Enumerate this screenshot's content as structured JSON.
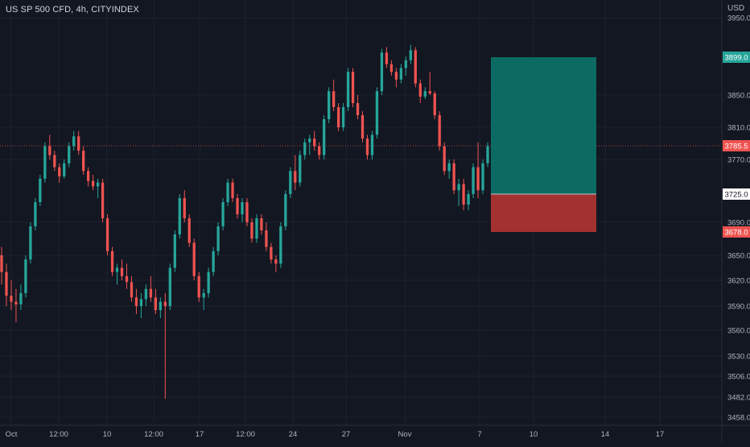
{
  "header": {
    "symbol_title": "US SP 500 CFD, 4h, CITYINDEX"
  },
  "price_axis": {
    "currency": "USD"
  },
  "colors": {
    "background": "#131722",
    "up": "#26a69a",
    "down": "#ef5350",
    "profit_zone": "#0b6b63",
    "loss_zone": "#a3312f",
    "grid": "#1e222d",
    "axis_text": "#b2b5be"
  },
  "badges": {
    "target": {
      "value": 3899.0,
      "label": "3899.0",
      "color": "#26a69a"
    },
    "current": {
      "value": 3785.5,
      "label": "3785.5",
      "color": "#ef5350"
    },
    "entry": {
      "value": 3725.0,
      "label": "3725.0",
      "color": "#ffffff"
    },
    "stop": {
      "value": 3678.0,
      "label": "3678.0",
      "color": "#ef5350"
    }
  },
  "chart_data": {
    "type": "candlestick",
    "instrument": "US SP 500 CFD",
    "timeframe": "4h",
    "source": "CITYINDEX",
    "y_ticks": [
      {
        "value": 3950,
        "label": "3950.0"
      },
      {
        "value": 3850,
        "label": "3850.0"
      },
      {
        "value": 3810,
        "label": "3810.0"
      },
      {
        "value": 3770,
        "label": "3770.0"
      },
      {
        "value": 3690,
        "label": "3690.0"
      },
      {
        "value": 3650,
        "label": "3650.0"
      },
      {
        "value": 3620,
        "label": "3620.0"
      },
      {
        "value": 3590,
        "label": "3590.0"
      },
      {
        "value": 3560,
        "label": "3560.0"
      },
      {
        "value": 3530,
        "label": "3530.0"
      },
      {
        "value": 3506,
        "label": "3506.0"
      },
      {
        "value": 3482,
        "label": "3482.0"
      },
      {
        "value": 3458,
        "label": "3458.0"
      }
    ],
    "x_ticks": [
      "Oct",
      "12:00",
      "10",
      "12:00",
      "17",
      "12:00",
      "24",
      "27",
      "Nov",
      "7",
      "10",
      "14",
      "17"
    ],
    "position": {
      "side": "long",
      "entry": 3725.0,
      "target": 3899.0,
      "stop": 3678.0
    },
    "candles": [
      [
        3650,
        3660,
        3615,
        3630
      ],
      [
        3630,
        3640,
        3590,
        3602
      ],
      [
        3602,
        3620,
        3585,
        3595
      ],
      [
        3595,
        3610,
        3570,
        3592
      ],
      [
        3592,
        3615,
        3585,
        3605
      ],
      [
        3605,
        3650,
        3600,
        3645
      ],
      [
        3645,
        3690,
        3640,
        3685
      ],
      [
        3685,
        3720,
        3680,
        3715
      ],
      [
        3715,
        3750,
        3710,
        3745
      ],
      [
        3745,
        3790,
        3740,
        3785
      ],
      [
        3785,
        3800,
        3770,
        3775
      ],
      [
        3775,
        3780,
        3755,
        3760
      ],
      [
        3760,
        3765,
        3740,
        3748
      ],
      [
        3748,
        3770,
        3745,
        3765
      ],
      [
        3765,
        3790,
        3760,
        3785
      ],
      [
        3785,
        3805,
        3780,
        3798
      ],
      [
        3798,
        3805,
        3775,
        3780
      ],
      [
        3780,
        3785,
        3750,
        3755
      ],
      [
        3755,
        3760,
        3735,
        3742
      ],
      [
        3742,
        3750,
        3730,
        3735
      ],
      [
        3735,
        3745,
        3720,
        3740
      ],
      [
        3740,
        3745,
        3690,
        3695
      ],
      [
        3695,
        3700,
        3650,
        3655
      ],
      [
        3655,
        3660,
        3625,
        3630
      ],
      [
        3630,
        3640,
        3615,
        3635
      ],
      [
        3635,
        3645,
        3620,
        3625
      ],
      [
        3625,
        3640,
        3610,
        3618
      ],
      [
        3618,
        3625,
        3595,
        3600
      ],
      [
        3600,
        3610,
        3580,
        3590
      ],
      [
        3590,
        3605,
        3575,
        3598
      ],
      [
        3598,
        3615,
        3590,
        3610
      ],
      [
        3610,
        3625,
        3595,
        3600
      ],
      [
        3600,
        3610,
        3580,
        3585
      ],
      [
        3585,
        3600,
        3575,
        3595
      ],
      [
        3595,
        3605,
        3480,
        3590
      ],
      [
        3590,
        3640,
        3585,
        3635
      ],
      [
        3635,
        3680,
        3630,
        3675
      ],
      [
        3675,
        3725,
        3670,
        3720
      ],
      [
        3720,
        3730,
        3690,
        3695
      ],
      [
        3695,
        3700,
        3660,
        3665
      ],
      [
        3665,
        3670,
        3620,
        3625
      ],
      [
        3625,
        3630,
        3595,
        3600
      ],
      [
        3600,
        3610,
        3585,
        3605
      ],
      [
        3605,
        3635,
        3600,
        3630
      ],
      [
        3630,
        3660,
        3625,
        3655
      ],
      [
        3655,
        3690,
        3650,
        3685
      ],
      [
        3685,
        3720,
        3680,
        3715
      ],
      [
        3715,
        3745,
        3710,
        3740
      ],
      [
        3740,
        3745,
        3715,
        3720
      ],
      [
        3720,
        3725,
        3695,
        3700
      ],
      [
        3700,
        3720,
        3690,
        3715
      ],
      [
        3715,
        3720,
        3685,
        3690
      ],
      [
        3690,
        3695,
        3665,
        3670
      ],
      [
        3670,
        3700,
        3665,
        3695
      ],
      [
        3695,
        3700,
        3675,
        3680
      ],
      [
        3680,
        3690,
        3655,
        3660
      ],
      [
        3660,
        3665,
        3640,
        3645
      ],
      [
        3645,
        3650,
        3630,
        3640
      ],
      [
        3640,
        3690,
        3635,
        3685
      ],
      [
        3685,
        3730,
        3680,
        3725
      ],
      [
        3725,
        3760,
        3720,
        3755
      ],
      [
        3755,
        3775,
        3730,
        3740
      ],
      [
        3740,
        3780,
        3735,
        3775
      ],
      [
        3775,
        3795,
        3770,
        3790
      ],
      [
        3790,
        3800,
        3775,
        3795
      ],
      [
        3795,
        3805,
        3780,
        3785
      ],
      [
        3785,
        3790,
        3770,
        3775
      ],
      [
        3775,
        3825,
        3770,
        3820
      ],
      [
        3820,
        3860,
        3815,
        3855
      ],
      [
        3855,
        3870,
        3830,
        3835
      ],
      [
        3835,
        3840,
        3805,
        3810
      ],
      [
        3810,
        3840,
        3805,
        3835
      ],
      [
        3835,
        3885,
        3830,
        3880
      ],
      [
        3880,
        3885,
        3835,
        3840
      ],
      [
        3840,
        3850,
        3820,
        3825
      ],
      [
        3825,
        3830,
        3790,
        3795
      ],
      [
        3795,
        3800,
        3770,
        3775
      ],
      [
        3775,
        3805,
        3770,
        3800
      ],
      [
        3800,
        3860,
        3795,
        3855
      ],
      [
        3855,
        3910,
        3850,
        3905
      ],
      [
        3905,
        3912,
        3885,
        3890
      ],
      [
        3890,
        3895,
        3875,
        3880
      ],
      [
        3880,
        3885,
        3860,
        3870
      ],
      [
        3870,
        3890,
        3865,
        3885
      ],
      [
        3885,
        3900,
        3875,
        3895
      ],
      [
        3895,
        3915,
        3890,
        3908
      ],
      [
        3908,
        3912,
        3860,
        3865
      ],
      [
        3865,
        3870,
        3840,
        3848
      ],
      [
        3848,
        3860,
        3845,
        3855
      ],
      [
        3855,
        3880,
        3850,
        3852
      ],
      [
        3852,
        3855,
        3820,
        3825
      ],
      [
        3825,
        3830,
        3780,
        3785
      ],
      [
        3785,
        3790,
        3750,
        3755
      ],
      [
        3755,
        3770,
        3745,
        3765
      ],
      [
        3765,
        3770,
        3725,
        3730
      ],
      [
        3730,
        3745,
        3710,
        3738
      ],
      [
        3738,
        3745,
        3705,
        3712
      ],
      [
        3712,
        3730,
        3705,
        3725
      ],
      [
        3725,
        3765,
        3720,
        3760
      ],
      [
        3760,
        3790,
        3720,
        3730
      ],
      [
        3730,
        3770,
        3725,
        3765
      ],
      [
        3765,
        3790,
        3760,
        3785
      ]
    ]
  }
}
